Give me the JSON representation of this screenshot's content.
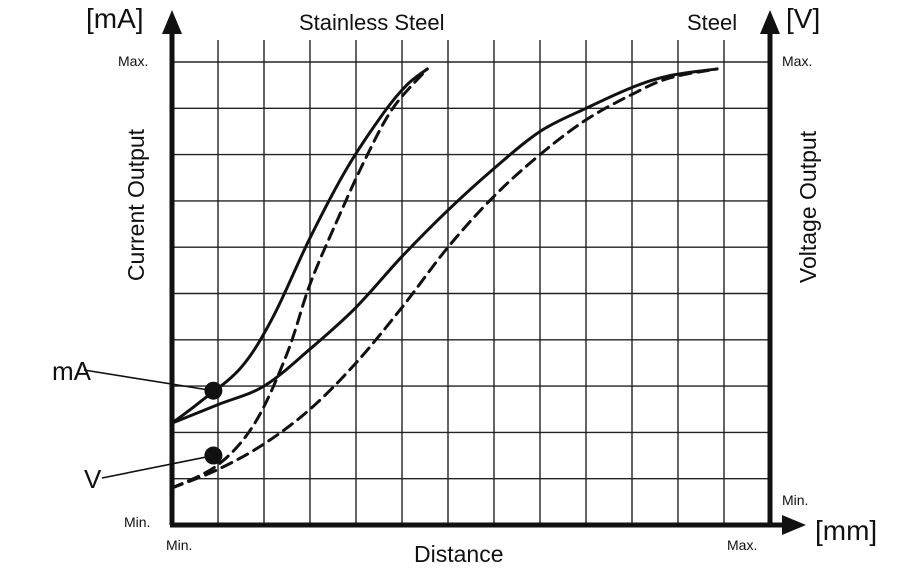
{
  "chart_data": {
    "type": "line",
    "xlabel": "Distance",
    "ylabel_left": "Current Output",
    "ylabel_right": "Voltage Output",
    "unit_left": "[mA]",
    "unit_right": "[V]",
    "unit_x": "[mm]",
    "x_tick_min": "Min.",
    "x_tick_max": "Max.",
    "y_left_tick_min": "Min.",
    "y_left_tick_max": "Max.",
    "y_right_tick_min": "Min.",
    "y_right_tick_max": "Max.",
    "xlim": [
      0,
      12
    ],
    "ylim": [
      0,
      10
    ],
    "grid": true,
    "curve_labels": [
      {
        "text": "Stainless Steel",
        "x": 5.5
      },
      {
        "text": "Steel",
        "x": 11.5
      }
    ],
    "series": [
      {
        "material": "stainless-steel",
        "output": "mA",
        "style": "solid",
        "x": [
          0,
          0.6,
          1.5,
          2.2,
          3.0,
          3.8,
          4.6,
          5.1,
          5.55
        ],
        "y": [
          2.2,
          2.65,
          3.4,
          4.5,
          6.2,
          7.7,
          8.9,
          9.5,
          9.85
        ]
      },
      {
        "material": "stainless-steel",
        "output": "V",
        "style": "dashed",
        "x": [
          0,
          1.0,
          1.8,
          2.5,
          3.0,
          3.6,
          4.2,
          4.8,
          5.55
        ],
        "y": [
          0.8,
          1.3,
          2.2,
          3.7,
          5.2,
          6.6,
          7.9,
          9.0,
          9.85
        ]
      },
      {
        "material": "steel",
        "output": "mA",
        "style": "solid",
        "x": [
          0,
          1.0,
          2.0,
          3.0,
          4.0,
          5.0,
          6.0,
          7.0,
          8.0,
          9.0,
          10.0,
          10.8,
          11.85
        ],
        "y": [
          2.2,
          2.6,
          3.0,
          3.8,
          4.7,
          5.8,
          6.8,
          7.7,
          8.5,
          9.0,
          9.45,
          9.7,
          9.85
        ]
      },
      {
        "material": "steel",
        "output": "V",
        "style": "dashed",
        "x": [
          0,
          1.0,
          2.0,
          3.0,
          4.0,
          5.0,
          6.0,
          7.0,
          8.0,
          9.0,
          10.0,
          10.8,
          11.85
        ],
        "y": [
          0.8,
          1.2,
          1.75,
          2.5,
          3.5,
          4.7,
          6.0,
          7.1,
          8.0,
          8.75,
          9.3,
          9.65,
          9.85
        ]
      }
    ],
    "markers": [
      {
        "label": "mA",
        "x": 0.9,
        "y": 2.9
      },
      {
        "label": "V",
        "x": 0.9,
        "y": 1.5
      }
    ]
  }
}
